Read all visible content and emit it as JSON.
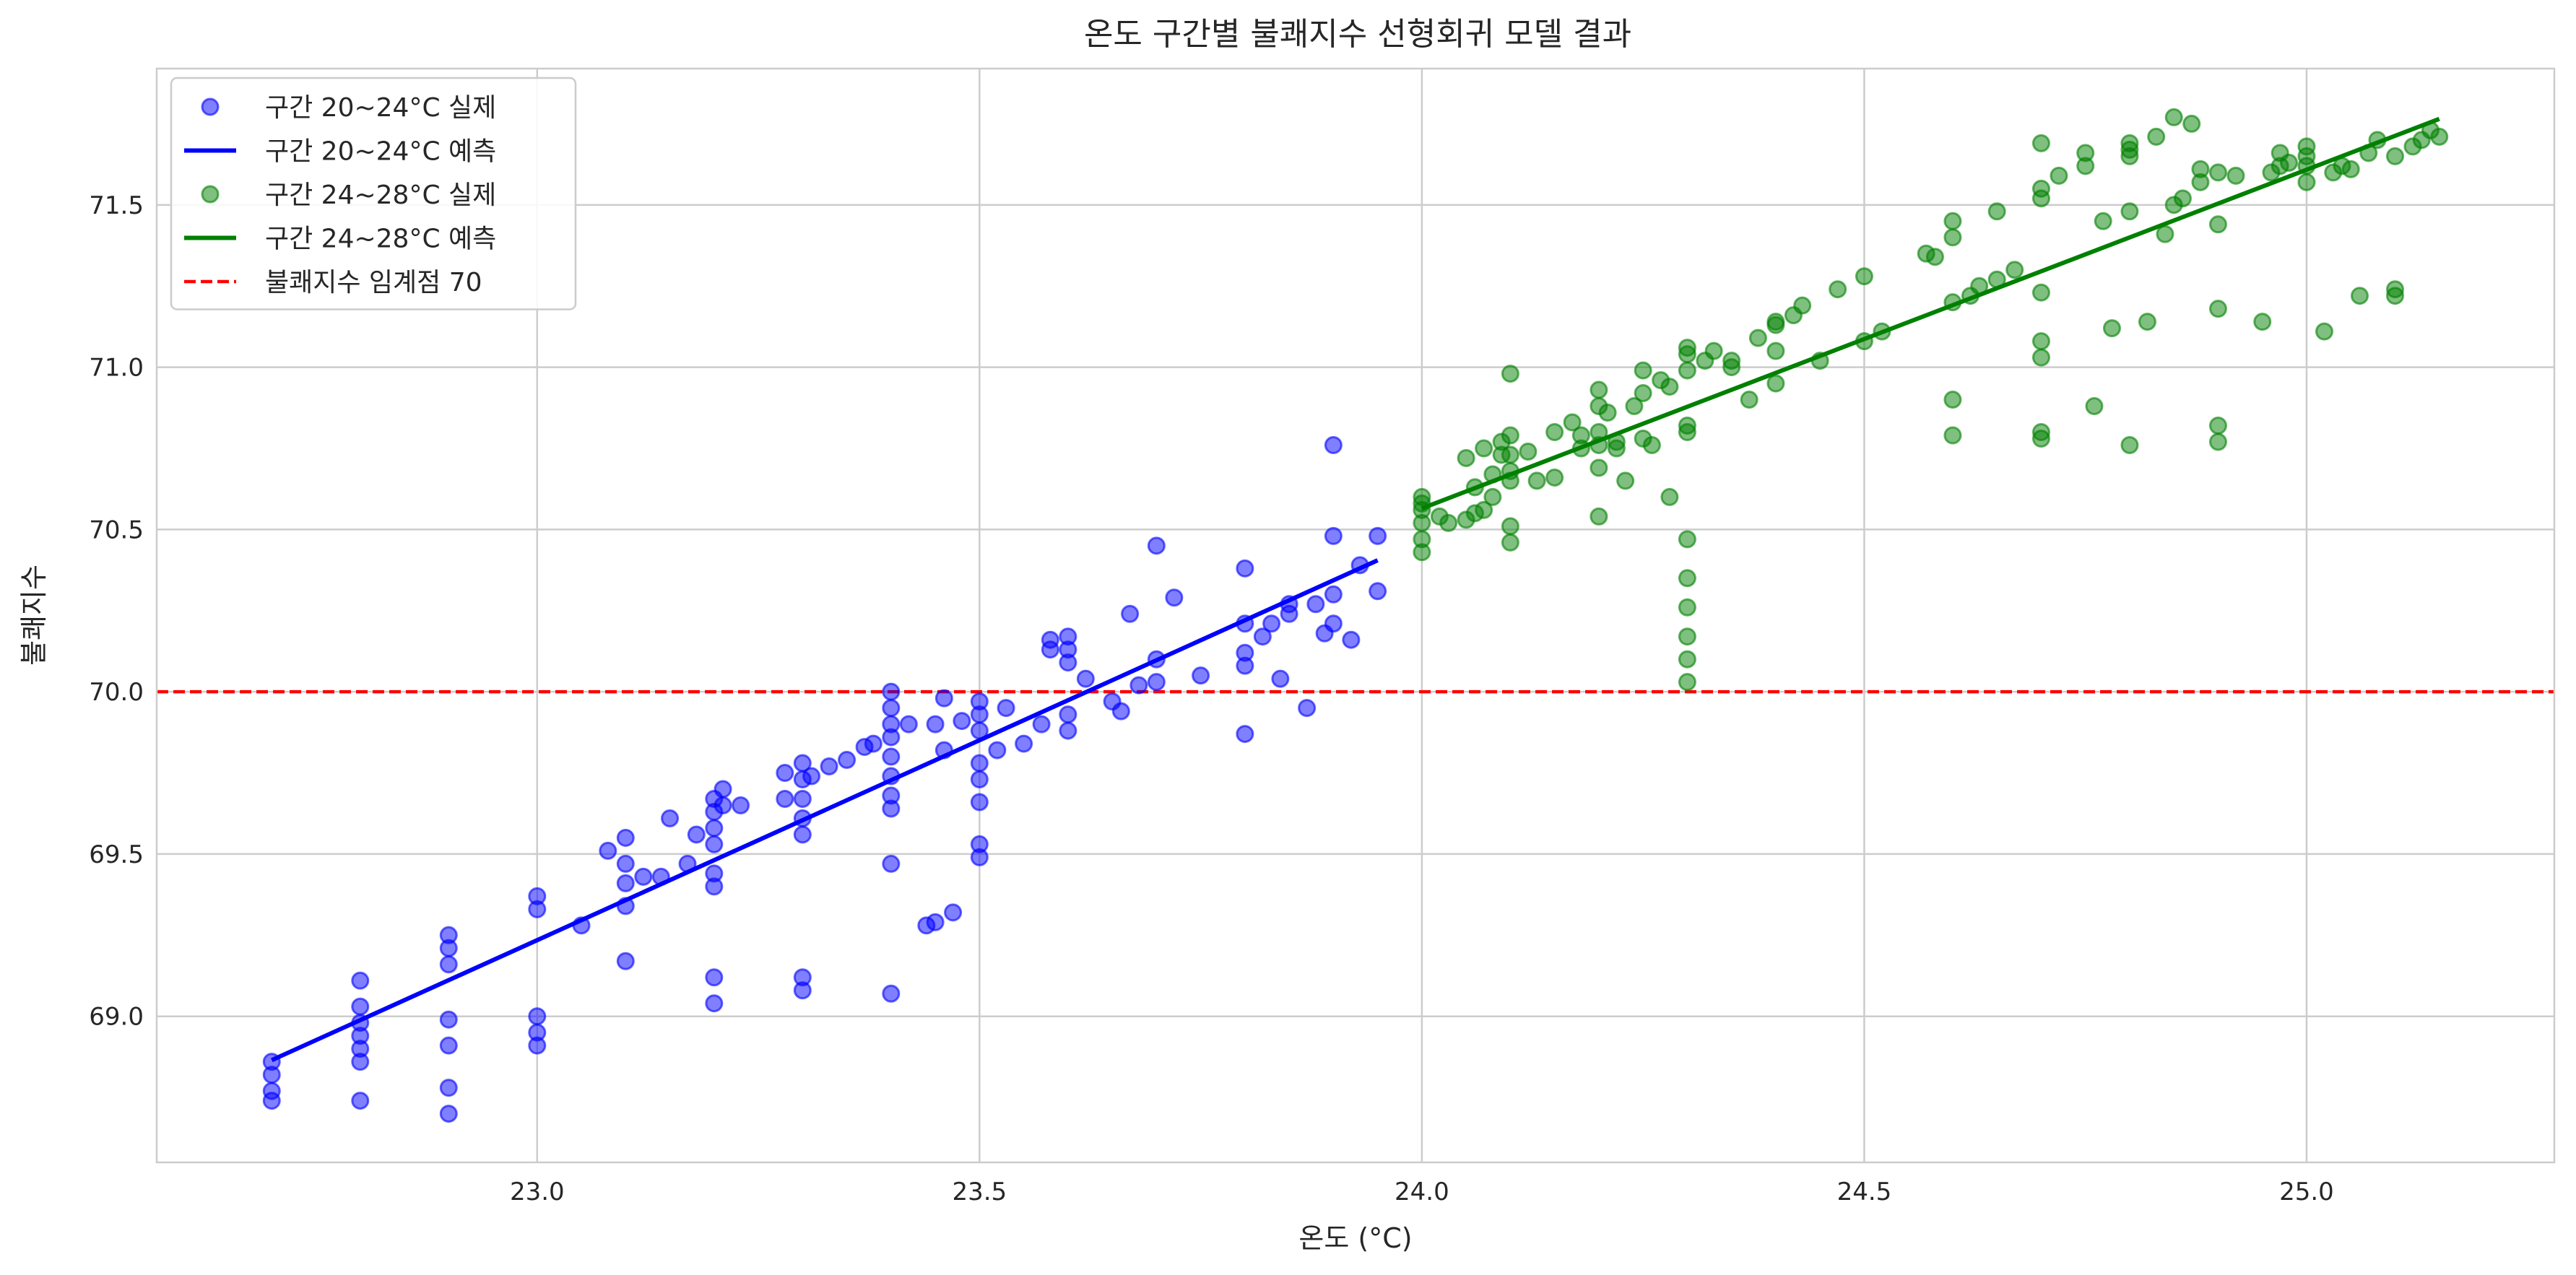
{
  "chart_data": {
    "type": "scatter",
    "title": "온도 구간별 불쾌지수 선형회귀 모델 결과",
    "xlabel": "온도 (°C)",
    "ylabel": "불쾌지수",
    "xlim": [
      22.57,
      25.28
    ],
    "ylim": [
      68.55,
      71.92
    ],
    "xticks": [
      23.0,
      23.5,
      24.0,
      24.5,
      25.0
    ],
    "yticks": [
      69.0,
      69.5,
      70.0,
      70.5,
      71.0,
      71.5
    ],
    "grid": true,
    "legend_position": "top-left",
    "threshold": {
      "y": 70,
      "name": "불쾌지수 임계점 70",
      "color": "#ff0000"
    },
    "series": [
      {
        "name": "구간 20~24°C 실제",
        "kind": "scatter",
        "color": "#0000ff",
        "x": [
          22.7,
          22.7,
          22.7,
          22.7,
          22.8,
          22.8,
          22.8,
          22.8,
          22.8,
          22.8,
          22.8,
          22.9,
          22.9,
          22.9,
          22.9,
          22.9,
          22.9,
          22.9,
          23.0,
          23.0,
          23.0,
          23.0,
          23.0,
          23.05,
          23.08,
          23.1,
          23.1,
          23.1,
          23.1,
          23.1,
          23.12,
          23.14,
          23.15,
          23.17,
          23.18,
          23.2,
          23.2,
          23.2,
          23.2,
          23.2,
          23.2,
          23.2,
          23.2,
          23.21,
          23.21,
          23.23,
          23.28,
          23.28,
          23.3,
          23.3,
          23.3,
          23.3,
          23.3,
          23.3,
          23.3,
          23.31,
          23.33,
          23.35,
          23.37,
          23.38,
          23.4,
          23.4,
          23.4,
          23.4,
          23.4,
          23.4,
          23.4,
          23.4,
          23.4,
          23.4,
          23.42,
          23.44,
          23.45,
          23.45,
          23.46,
          23.46,
          23.47,
          23.48,
          23.5,
          23.5,
          23.5,
          23.5,
          23.5,
          23.5,
          23.5,
          23.5,
          23.52,
          23.53,
          23.55,
          23.57,
          23.58,
          23.58,
          23.6,
          23.6,
          23.6,
          23.6,
          23.6,
          23.62,
          23.65,
          23.66,
          23.67,
          23.68,
          23.7,
          23.7,
          23.7,
          23.72,
          23.75,
          23.8,
          23.8,
          23.8,
          23.8,
          23.8,
          23.82,
          23.83,
          23.84,
          23.85,
          23.85,
          23.87,
          23.88,
          23.89,
          23.9,
          23.9,
          23.9,
          23.9,
          23.92,
          23.93,
          23.95,
          23.95
        ],
        "y": [
          68.74,
          68.77,
          68.82,
          68.86,
          68.74,
          68.86,
          68.9,
          68.94,
          68.98,
          69.03,
          69.11,
          68.7,
          68.78,
          68.91,
          68.99,
          69.16,
          69.21,
          69.25,
          68.91,
          68.95,
          69.0,
          69.33,
          69.37,
          69.28,
          69.51,
          69.17,
          69.34,
          69.41,
          69.47,
          69.55,
          69.43,
          69.43,
          69.61,
          69.47,
          69.56,
          69.04,
          69.12,
          69.4,
          69.44,
          69.53,
          69.58,
          69.63,
          69.67,
          69.65,
          69.7,
          69.65,
          69.67,
          69.75,
          69.08,
          69.12,
          69.56,
          69.61,
          69.67,
          69.73,
          69.78,
          69.74,
          69.77,
          69.79,
          69.83,
          69.84,
          69.07,
          69.47,
          69.64,
          69.68,
          69.74,
          69.8,
          69.86,
          69.9,
          69.95,
          70.0,
          69.9,
          69.28,
          69.29,
          69.9,
          69.82,
          69.98,
          69.32,
          69.91,
          69.49,
          69.53,
          69.66,
          69.73,
          69.78,
          69.88,
          69.93,
          69.97,
          69.82,
          69.95,
          69.84,
          69.9,
          70.13,
          70.16,
          69.88,
          69.93,
          70.09,
          70.13,
          70.17,
          70.04,
          69.97,
          69.94,
          70.24,
          70.02,
          70.03,
          70.1,
          70.45,
          70.29,
          70.05,
          69.87,
          70.08,
          70.12,
          70.21,
          70.38,
          70.17,
          70.21,
          70.04,
          70.24,
          70.27,
          69.95,
          70.27,
          70.18,
          70.21,
          70.3,
          70.48,
          70.76,
          70.16,
          70.39,
          70.31,
          70.48
        ]
      },
      {
        "name": "구간 20~24°C 예측",
        "kind": "line",
        "color": "#0000ff",
        "x": [
          22.7,
          23.95
        ],
        "y": [
          68.865,
          70.405
        ]
      },
      {
        "name": "구간 24~28°C 실제",
        "kind": "scatter",
        "color": "#008000",
        "x": [
          24.0,
          24.0,
          24.0,
          24.0,
          24.0,
          24.0,
          24.02,
          24.03,
          24.05,
          24.05,
          24.06,
          24.06,
          24.07,
          24.07,
          24.08,
          24.08,
          24.09,
          24.09,
          24.1,
          24.1,
          24.1,
          24.1,
          24.1,
          24.1,
          24.1,
          24.12,
          24.13,
          24.15,
          24.15,
          24.17,
          24.18,
          24.18,
          24.2,
          24.2,
          24.2,
          24.2,
          24.2,
          24.2,
          24.21,
          24.22,
          24.22,
          24.23,
          24.24,
          24.25,
          24.25,
          24.25,
          24.26,
          24.27,
          24.28,
          24.28,
          24.3,
          24.3,
          24.3,
          24.3,
          24.3,
          24.3,
          24.3,
          24.3,
          24.3,
          24.3,
          24.3,
          24.32,
          24.33,
          24.35,
          24.35,
          24.37,
          24.38,
          24.4,
          24.4,
          24.4,
          24.4,
          24.42,
          24.43,
          24.45,
          24.47,
          24.5,
          24.5,
          24.52,
          24.57,
          24.58,
          24.6,
          24.6,
          24.6,
          24.6,
          24.6,
          24.62,
          24.63,
          24.65,
          24.65,
          24.67,
          24.7,
          24.7,
          24.7,
          24.7,
          24.7,
          24.7,
          24.7,
          24.7,
          24.72,
          24.75,
          24.75,
          24.76,
          24.77,
          24.78,
          24.8,
          24.8,
          24.8,
          24.8,
          24.8,
          24.82,
          24.83,
          24.84,
          24.85,
          24.85,
          24.86,
          24.87,
          24.88,
          24.88,
          24.9,
          24.9,
          24.9,
          24.9,
          24.9,
          24.92,
          24.95,
          24.96,
          24.97,
          24.97,
          24.98,
          25.0,
          25.0,
          25.0,
          25.0,
          25.02,
          25.03,
          25.04,
          25.05,
          25.06,
          25.07,
          25.08,
          25.1,
          25.1,
          25.1,
          25.12,
          25.13,
          25.14,
          25.15
        ],
        "y": [
          70.43,
          70.47,
          70.52,
          70.56,
          70.6,
          70.58,
          70.54,
          70.52,
          70.53,
          70.72,
          70.55,
          70.63,
          70.56,
          70.75,
          70.6,
          70.67,
          70.73,
          70.77,
          70.46,
          70.51,
          70.65,
          70.68,
          70.73,
          70.79,
          70.98,
          70.74,
          70.65,
          70.66,
          70.8,
          70.83,
          70.75,
          70.79,
          70.54,
          70.69,
          70.76,
          70.8,
          70.88,
          70.93,
          70.86,
          70.75,
          70.77,
          70.65,
          70.88,
          70.78,
          70.92,
          70.99,
          70.76,
          70.96,
          70.6,
          70.94,
          70.03,
          70.1,
          70.17,
          70.26,
          70.35,
          70.47,
          70.8,
          70.82,
          70.99,
          71.04,
          71.06,
          71.02,
          71.05,
          71.02,
          71.0,
          70.9,
          71.09,
          70.95,
          71.05,
          71.13,
          71.14,
          71.16,
          71.19,
          71.02,
          71.24,
          71.08,
          71.28,
          71.11,
          71.35,
          71.34,
          70.79,
          70.9,
          71.2,
          71.4,
          71.45,
          71.22,
          71.25,
          71.27,
          71.48,
          71.3,
          70.78,
          70.8,
          71.03,
          71.08,
          71.23,
          71.52,
          71.55,
          71.69,
          71.59,
          71.62,
          71.66,
          70.88,
          71.45,
          71.12,
          70.76,
          71.48,
          71.65,
          71.69,
          71.67,
          71.14,
          71.71,
          71.41,
          71.5,
          71.77,
          71.52,
          71.75,
          71.57,
          71.61,
          70.77,
          70.82,
          71.18,
          71.44,
          71.6,
          71.59,
          71.14,
          71.6,
          71.62,
          71.66,
          71.63,
          71.57,
          71.62,
          71.65,
          71.68,
          71.11,
          71.6,
          71.62,
          71.61,
          71.22,
          71.66,
          71.7,
          71.65,
          71.24,
          71.22,
          71.68,
          71.7,
          71.73,
          71.71
        ]
      },
      {
        "name": "구간 24~28°C 예측",
        "kind": "line",
        "color": "#008000",
        "x": [
          24.0,
          25.15
        ],
        "y": [
          70.565,
          71.765
        ]
      }
    ]
  }
}
